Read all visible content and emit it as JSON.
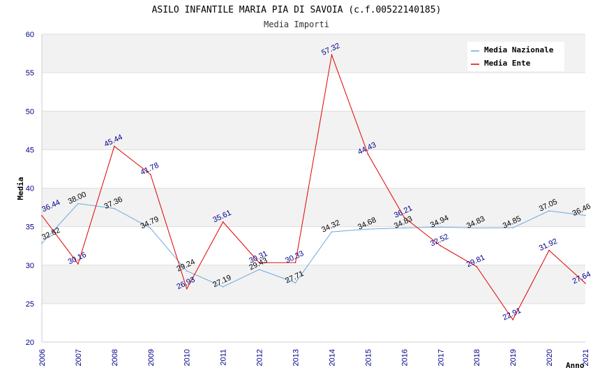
{
  "chart_data": {
    "type": "line",
    "title": "ASILO INFANTILE MARIA PIA DI SAVOIA (c.f.00522140185)",
    "subtitle": "Media Importi",
    "xlabel": "Anno",
    "ylabel": "Media",
    "ylim": [
      20,
      60
    ],
    "yticks": [
      20,
      25,
      30,
      35,
      40,
      45,
      50,
      55,
      60
    ],
    "grid": true,
    "legend_position": "top-right",
    "categories": [
      "2006",
      "2007",
      "2008",
      "2009",
      "2010",
      "2011",
      "2012",
      "2013",
      "2014",
      "2015",
      "2016",
      "2017",
      "2018",
      "2019",
      "2020",
      "2021"
    ],
    "series": [
      {
        "name": "Media Nazionale",
        "color": "#6fa8dc",
        "label_color": "#000000",
        "values": [
          32.82,
          38.0,
          37.36,
          34.79,
          29.24,
          27.19,
          29.43,
          27.71,
          34.32,
          34.68,
          34.83,
          34.94,
          34.83,
          34.85,
          37.05,
          36.46
        ],
        "labels": [
          "32.82",
          "38.00",
          "37.36",
          "34.79",
          "29.24",
          "27.19",
          "29.43",
          "27.71",
          "34.32",
          "34.68",
          "34.83",
          "34.94",
          "34.83",
          "34.85",
          "37.05",
          "36.46"
        ]
      },
      {
        "name": "Media Ente",
        "color": "#e00000",
        "label_color": "#00008b",
        "values": [
          36.44,
          30.16,
          45.44,
          41.78,
          26.93,
          35.61,
          30.31,
          30.33,
          57.32,
          44.43,
          36.21,
          32.52,
          29.81,
          22.91,
          31.92,
          27.64
        ],
        "labels": [
          "36.44",
          "30.16",
          "45.44",
          "41.78",
          "26.93",
          "35.61",
          "30.31",
          "30.33",
          "57.32",
          "44.43",
          "36.21",
          "32.52",
          "29.81",
          "22.91",
          "31.92",
          "27.64"
        ]
      }
    ]
  }
}
